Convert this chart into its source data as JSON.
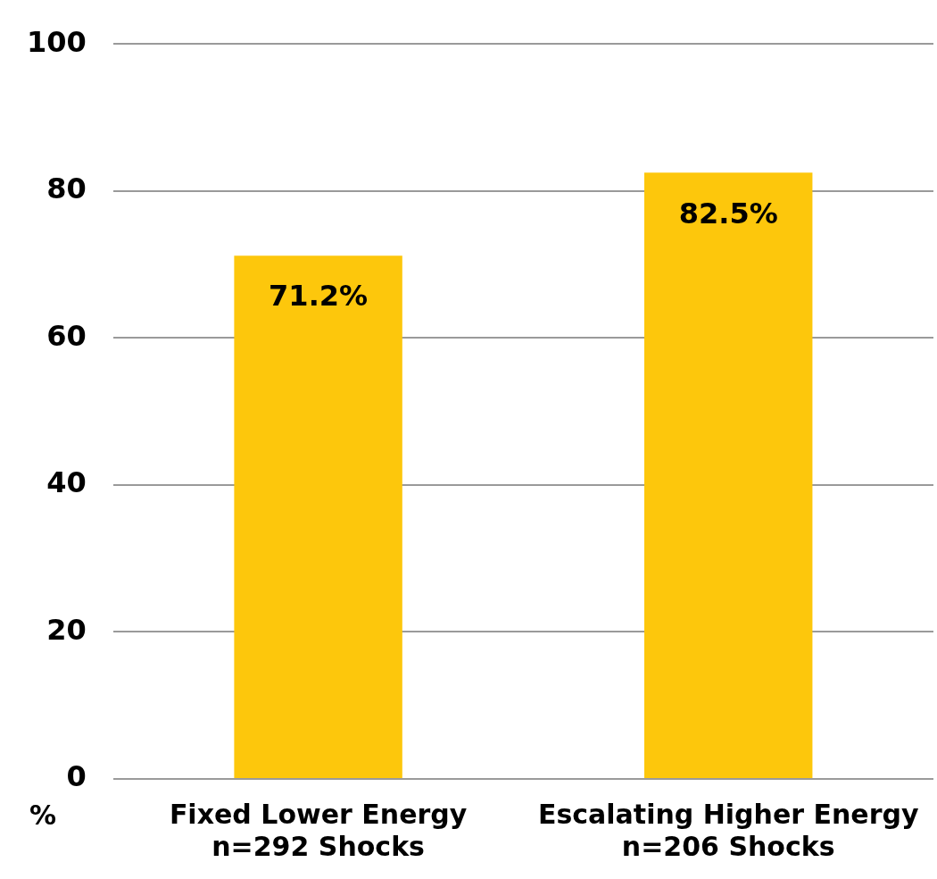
{
  "chart_data": {
    "type": "bar",
    "ylabel": "%",
    "categories": [
      "Fixed Lower Energy\nn=292 Shocks",
      "Escalating Higher Energy\nn=206 Shocks"
    ],
    "values": [
      71.2,
      82.5
    ],
    "color": "#fdc70c",
    "value_labels": [
      "71.2%",
      "82.5%"
    ],
    "ylim": [
      0,
      100
    ],
    "yticks": [
      0,
      20,
      40,
      60,
      80,
      100
    ],
    "grid": "y",
    "legend": false
  }
}
